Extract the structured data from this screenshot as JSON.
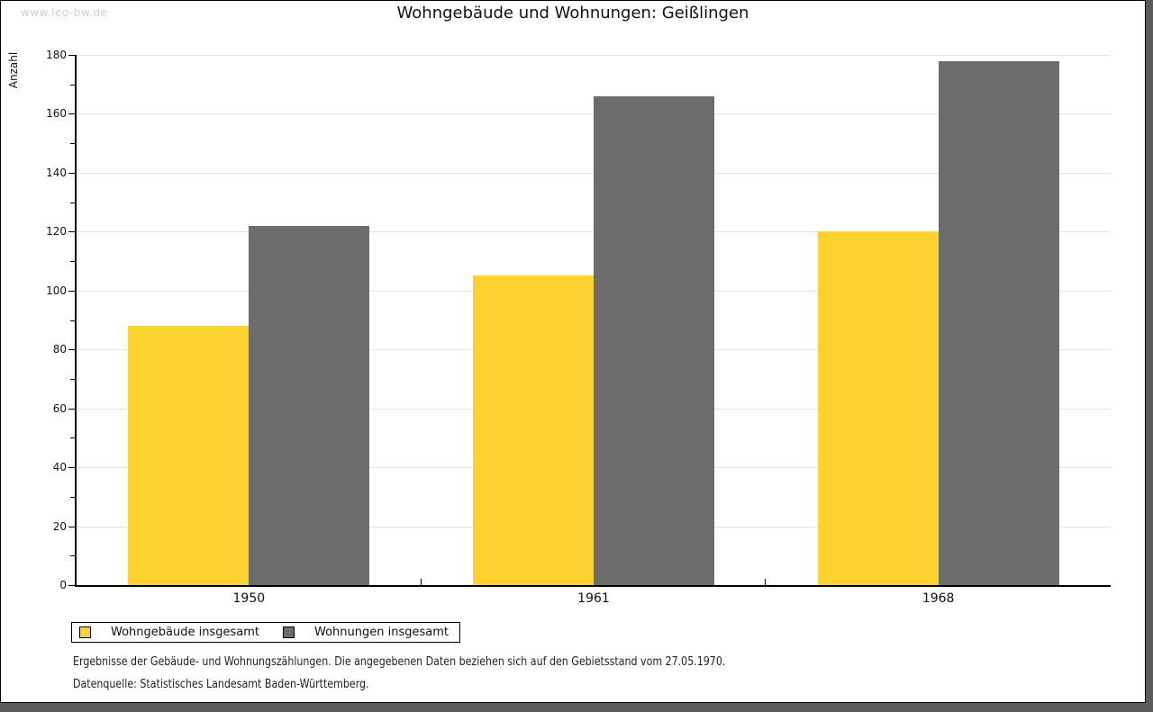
{
  "watermark": "www.leo-bw.de",
  "chart_data": {
    "type": "bar",
    "title": "Wohngebäude und Wohnungen: Geißlingen",
    "ylabel": "Anzahl",
    "xlabel": "",
    "categories": [
      "1950",
      "1961",
      "1968"
    ],
    "series": [
      {
        "name": "Wohngebäude insgesamt",
        "color": "#FCD230",
        "values": [
          88,
          105,
          120
        ]
      },
      {
        "name": "Wohnungen insgesamt",
        "color": "#6C6C6C",
        "values": [
          122,
          166,
          178
        ]
      }
    ],
    "ylim": [
      0,
      180
    ],
    "ytick_step": 20,
    "minor_tick_step": 10,
    "grid": true,
    "legend_position": "bottom-left"
  },
  "footnotes": [
    "Ergebnisse der Gebäude- und Wohnungszählungen. Die angegebenen Daten beziehen sich auf den Gebietsstand vom 27.05.1970.",
    "Datenquelle: Statistisches Landesamt Baden-Württemberg."
  ],
  "colors": {
    "frame_shadow": "#5a5a5a",
    "gridline": "#e4e4e4",
    "watermark_gray": "#cfcfcf",
    "series_yellow": "#FCD230",
    "series_gray": "#6C6C6C"
  }
}
